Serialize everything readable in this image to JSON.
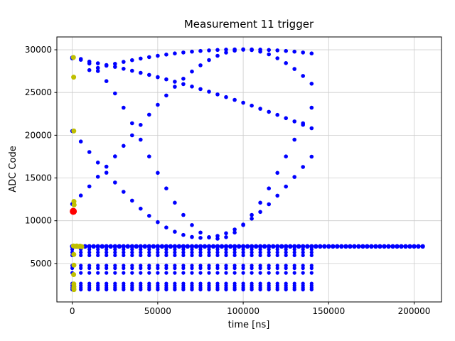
{
  "figure": {
    "background": "#ffffff"
  },
  "chart_data": {
    "type": "scatter",
    "title": "Measurement 11 trigger",
    "xlabel": "time [ns]",
    "ylabel": "ADC Code",
    "xlim": [
      -9000,
      216000
    ],
    "ylim": [
      500,
      31500
    ],
    "xticks": [
      0,
      50000,
      100000,
      150000,
      200000
    ],
    "yticks": [
      5000,
      10000,
      15000,
      20000,
      25000,
      30000
    ],
    "grid": true,
    "grid_color": "#cccccc",
    "frame_color": "#000000",
    "colors": {
      "signal": "#0000ff",
      "trigger_marks": "#bfbf00",
      "trigger_point": "#ff0000"
    },
    "series": [
      {
        "name": "curve-rising",
        "kind": "sampled",
        "color": "#0000ff",
        "marker_size": 2.8,
        "x_start": 0,
        "step": 5000,
        "y": [
          11950,
          12950,
          14010,
          15140,
          16320,
          17530,
          18760,
          19990,
          21210,
          22410,
          23560,
          24650,
          25670,
          26610,
          27450,
          28180,
          28800,
          29300,
          29670,
          29900,
          30000,
          29960,
          29780,
          29460,
          29010,
          28440,
          27750,
          26940,
          26030
        ]
      },
      {
        "name": "curve-top-arc",
        "kind": "sampled",
        "color": "#0000ff",
        "marker_size": 2.8,
        "x_start": 10000,
        "step": 5000,
        "y": [
          27620,
          27880,
          28130,
          28360,
          28580,
          28780,
          28970,
          29140,
          29300,
          29440,
          29570,
          29680,
          29780,
          29860,
          29930,
          29980,
          30020,
          30040,
          30050,
          30040,
          30020,
          29980,
          29930,
          29860,
          29780,
          29680,
          29570
        ]
      },
      {
        "name": "curve-deep-v",
        "kind": "sampled",
        "color": "#0000ff",
        "marker_size": 2.8,
        "x_start": 0,
        "step": 5000,
        "y": [
          29100,
          28920,
          28390,
          27510,
          26330,
          24890,
          23220,
          21400,
          19480,
          17520,
          15600,
          13780,
          12110,
          10670,
          9490,
          8620,
          8080,
          7900,
          8080,
          8620,
          9490,
          10670,
          12110,
          13780,
          15600,
          17520,
          19480,
          21400,
          23220
        ]
      },
      {
        "name": "curve-mid-dip",
        "kind": "sampled",
        "color": "#0000ff",
        "marker_size": 2.8,
        "x_start": 0,
        "step": 5000,
        "y": [
          20500,
          19270,
          18040,
          16810,
          15620,
          14470,
          13380,
          12350,
          11410,
          10570,
          9830,
          9210,
          8710,
          8340,
          8100,
          8000,
          8040,
          8220,
          8540,
          8980,
          9550,
          10240,
          11030,
          11930,
          12930,
          14000,
          15120,
          16290,
          17500
        ]
      },
      {
        "name": "curve-slow-descent",
        "kind": "sampled",
        "color": "#0000ff",
        "marker_size": 2.8,
        "x_start": 0,
        "step": 5000,
        "y": [
          29000,
          28820,
          28620,
          28420,
          28220,
          28000,
          27780,
          27540,
          27300,
          27060,
          26800,
          26540,
          26260,
          25980,
          25700,
          25400,
          25100,
          24780,
          24460,
          24140,
          23800,
          23460,
          23100,
          22740,
          22380,
          22000,
          21620,
          21220,
          20820
        ]
      },
      {
        "name": "baseline-band",
        "kind": "hline",
        "color": "#0000ff",
        "marker_size": 3.2,
        "y": 7000,
        "x_start": 0,
        "x_end": 205000,
        "step": 2500
      },
      {
        "name": "column-samples",
        "kind": "grid",
        "color": "#0000ff",
        "marker_size": 2.6,
        "x_start": 0,
        "x_end": 140000,
        "x_step": 5000,
        "y_values": [
          6650,
          6300,
          5950,
          4750,
          4450,
          3900,
          2650,
          2400,
          2150,
          1950
        ]
      },
      {
        "name": "trigger-samples",
        "kind": "points",
        "color": "#bfbf00",
        "marker_size": 3.5,
        "points": [
          [
            700,
            29100
          ],
          [
            800,
            26800
          ],
          [
            900,
            20500
          ],
          [
            1000,
            12250
          ],
          [
            1100,
            11850
          ],
          [
            700,
            7050
          ],
          [
            1600,
            7000
          ],
          [
            2600,
            7050
          ],
          [
            3600,
            6980
          ],
          [
            4600,
            7020
          ],
          [
            5600,
            6960
          ],
          [
            900,
            6050
          ],
          [
            1000,
            4800
          ],
          [
            800,
            3700
          ],
          [
            900,
            2600
          ],
          [
            1000,
            2300
          ],
          [
            900,
            2100
          ],
          [
            1000,
            1950
          ]
        ]
      },
      {
        "name": "trigger-point",
        "kind": "points",
        "color": "#ff0000",
        "marker_size": 5,
        "points": [
          [
            600,
            11100
          ]
        ]
      }
    ]
  }
}
